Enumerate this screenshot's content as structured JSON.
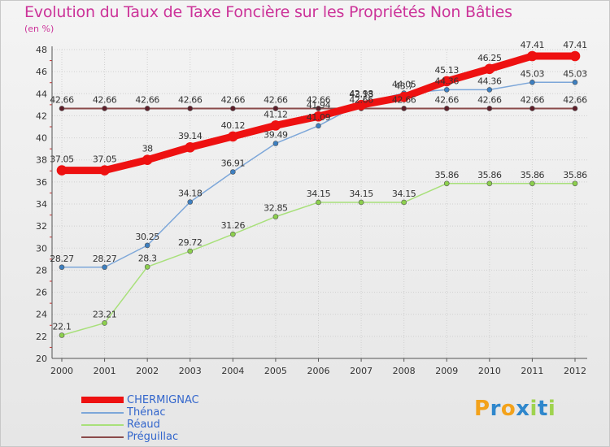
{
  "header": {
    "title": "Evolution du Taux de Taxe Foncière sur les Propriétés Non Bâties",
    "unit": "(en %)"
  },
  "logo": {
    "text": "Proxiti",
    "letters": [
      "P",
      "r",
      "o",
      "x",
      "i",
      "t",
      "i"
    ],
    "colors": [
      "#f3a21b",
      "#2f87cc",
      "#f3a21b",
      "#2f87cc",
      "#9fd34f",
      "#2f87cc",
      "#9fd34f"
    ]
  },
  "chart_data": {
    "type": "line",
    "title": "Evolution du Taux de Taxe Foncière sur les Propriétés Non Bâties",
    "ylabel": "(en %)",
    "xlabel": "",
    "ylim": [
      20,
      48
    ],
    "yticks": [
      20,
      22,
      24,
      26,
      28,
      30,
      32,
      34,
      36,
      38,
      40,
      42,
      44,
      46,
      48
    ],
    "categories": [
      "2000",
      "2001",
      "2002",
      "2003",
      "2004",
      "2005",
      "2006",
      "2007",
      "2008",
      "2009",
      "2010",
      "2011",
      "2012"
    ],
    "series": [
      {
        "name": "Préguillac",
        "color": "#8a4a4a",
        "point_color": "#5e1f2a",
        "width": 2,
        "marker": 3,
        "values": [
          42.66,
          42.66,
          42.66,
          42.66,
          42.66,
          42.66,
          42.66,
          42.66,
          42.66,
          42.66,
          42.66,
          42.66,
          42.66
        ],
        "labels": [
          "42.66",
          "42.66",
          "42.66",
          "42.66",
          "42.66",
          "42.66",
          "42.66",
          "42.66",
          "42.66",
          "42.66",
          "42.66",
          "42.66",
          "42.66"
        ]
      },
      {
        "name": "Réaud",
        "color": "#a8e07a",
        "point_color": "#8ccf4d",
        "width": 1.5,
        "marker": 3,
        "values": [
          22.1,
          23.21,
          28.3,
          29.72,
          31.26,
          32.85,
          34.15,
          34.15,
          34.15,
          35.86,
          35.86,
          35.86,
          35.86
        ],
        "labels": [
          "22.1",
          "23.21",
          "28.3",
          "29.72",
          "31.26",
          "32.85",
          "34.15",
          "34.15",
          "34.15",
          "35.86",
          "35.86",
          "35.86",
          "35.86"
        ]
      },
      {
        "name": "Thénac",
        "color": "#7da7d9",
        "point_color": "#3d7fc0",
        "width": 1.5,
        "marker": 3,
        "values": [
          28.27,
          28.27,
          30.25,
          34.18,
          36.91,
          39.49,
          41.09,
          43.13,
          44.05,
          44.36,
          44.36,
          45.03,
          45.03
        ],
        "labels": [
          "28.27",
          "28.27",
          "30.25",
          "34.18",
          "36.91",
          "39.49",
          "41.09",
          "43.13",
          "44.05",
          "44.36",
          "44.36",
          "45.03",
          "45.03"
        ]
      },
      {
        "name": "CHERMIGNAC",
        "color": "#ee1111",
        "point_color": "#ee1111",
        "width": 9,
        "marker": 6,
        "values": [
          37.05,
          37.05,
          38,
          39.14,
          40.12,
          41.12,
          41.94,
          42.98,
          43.7,
          45.13,
          46.25,
          47.41,
          47.41
        ],
        "labels": [
          "37.05",
          "37.05",
          "38",
          "39.14",
          "40.12",
          "41.12",
          "41.94",
          "42.98",
          "43.7",
          "45.13",
          "46.25",
          "47.41",
          "47.41"
        ]
      }
    ],
    "legend": [
      "CHERMIGNAC",
      "Thénac",
      "Réaud",
      "Préguillac"
    ],
    "legend_position": "bottom-left"
  }
}
